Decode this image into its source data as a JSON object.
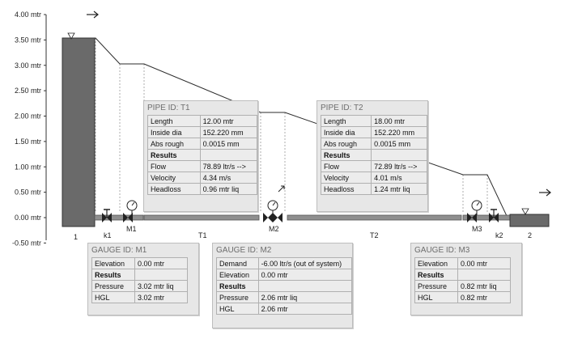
{
  "axis": {
    "ticks": [
      {
        "label": "4.00 mtr",
        "value": 4.0
      },
      {
        "label": "3.50 mtr",
        "value": 3.5
      },
      {
        "label": "3.00 mtr",
        "value": 3.0
      },
      {
        "label": "2.50 mtr",
        "value": 2.5
      },
      {
        "label": "2.00 mtr",
        "value": 2.0
      },
      {
        "label": "1.50 mtr",
        "value": 1.5
      },
      {
        "label": "1.00 mtr",
        "value": 1.0
      },
      {
        "label": "0.50 mtr",
        "value": 0.5
      },
      {
        "label": "0.00 mtr",
        "value": 0.0
      },
      {
        "label": "-0.50 mtr",
        "value": -0.5
      }
    ]
  },
  "labels": {
    "tank1": "1",
    "tank2": "2",
    "k1": "k1",
    "k2": "k2",
    "m1": "M1",
    "m2": "M2",
    "m3": "M3",
    "t1": "T1",
    "t2": "T2"
  },
  "pipe_t1": {
    "title": "PIPE ID: T1",
    "rows": [
      {
        "label": "Length",
        "value": "12.00 mtr"
      },
      {
        "label": "Inside dia",
        "value": "152.220 mm"
      },
      {
        "label": "Abs rough",
        "value": "0.0015 mm"
      },
      {
        "label": "Results",
        "value": ""
      },
      {
        "label": "Flow",
        "value": "78.89 ltr/s -->"
      },
      {
        "label": "Velocity",
        "value": "4.34 m/s"
      },
      {
        "label": "Headloss",
        "value": "0.96 mtr liq"
      }
    ]
  },
  "pipe_t2": {
    "title": "PIPE ID: T2",
    "rows": [
      {
        "label": "Length",
        "value": "18.00 mtr"
      },
      {
        "label": "Inside dia",
        "value": "152.220 mm"
      },
      {
        "label": "Abs rough",
        "value": "0.0015 mm"
      },
      {
        "label": "Results",
        "value": ""
      },
      {
        "label": "Flow",
        "value": "72.89 ltr/s -->"
      },
      {
        "label": "Velocity",
        "value": "4.01 m/s"
      },
      {
        "label": "Headloss",
        "value": "1.24 mtr liq"
      }
    ]
  },
  "gauge_m1": {
    "title": "GAUGE ID: M1",
    "rows": [
      {
        "label": "Elevation",
        "value": "0.00 mtr"
      },
      {
        "label": "Results",
        "value": ""
      },
      {
        "label": "Pressure",
        "value": "3.02 mtr liq"
      },
      {
        "label": "HGL",
        "value": "3.02 mtr"
      }
    ]
  },
  "gauge_m2": {
    "title": "GAUGE ID: M2",
    "rows": [
      {
        "label": "Demand",
        "value": "-6.00 ltr/s (out of system)"
      },
      {
        "label": "Elevation",
        "value": "0.00 mtr"
      },
      {
        "label": "Results",
        "value": ""
      },
      {
        "label": "Pressure",
        "value": "2.06 mtr liq"
      },
      {
        "label": "HGL",
        "value": "2.06 mtr"
      }
    ]
  },
  "gauge_m3": {
    "title": "GAUGE ID: M3",
    "rows": [
      {
        "label": "Elevation",
        "value": "0.00 mtr"
      },
      {
        "label": "Results",
        "value": ""
      },
      {
        "label": "Pressure",
        "value": "0.82 mtr liq"
      },
      {
        "label": "HGL",
        "value": "0.82 mtr"
      }
    ]
  },
  "hgl": [
    {
      "point": "tank1",
      "value": 3.5
    },
    {
      "point": "k1",
      "value": 3.02
    },
    {
      "point": "m1",
      "value": 3.02
    },
    {
      "point": "m2",
      "value": 2.06
    },
    {
      "point": "m3",
      "value": 0.82
    },
    {
      "point": "k2",
      "value": 0.82
    },
    {
      "point": "tank2",
      "value": 0.0
    }
  ],
  "colors": {
    "tank": "#6a6a6a",
    "pipe": "#8f8f8f",
    "hgl": "#2b2b2b",
    "panel_bg": "#e7e7e7",
    "panel_title": "#6e6e6e"
  }
}
